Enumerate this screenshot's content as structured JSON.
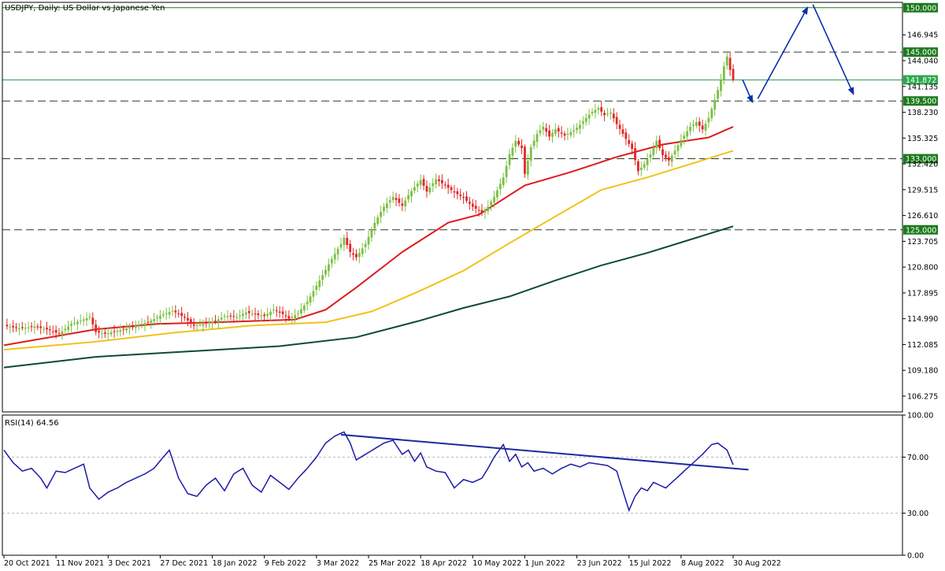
{
  "chart_data": [
    {
      "type": "candlestick",
      "title": "USDJPY, Daily:  US Dollar vs Japanese Yen",
      "ylim": [
        104.5,
        150.6
      ],
      "y_ticks": [
        "146.945",
        "144.040",
        "141.135",
        "138.230",
        "135.325",
        "132.420",
        "129.515",
        "126.610",
        "123.705",
        "120.800",
        "117.895",
        "114.990",
        "112.085",
        "109.180",
        "106.275"
      ],
      "x_ticks": [
        "20 Oct 2021",
        "11 Nov 2021",
        "3 Dec 2021",
        "27 Dec 2021",
        "18 Jan 2022",
        "9 Feb 2022",
        "3 Mar 2022",
        "25 Mar 2022",
        "18 Apr 2022",
        "10 May 2022",
        "1 Jun 2022",
        "23 Jun 2022",
        "15 Jul 2022",
        "8 Aug 2022",
        "30 Aug 2022"
      ],
      "price_anchors": [
        [
          0,
          114.2
        ],
        [
          5,
          113.9
        ],
        [
          10,
          114.1
        ],
        [
          15,
          113.7
        ],
        [
          18,
          113.3
        ],
        [
          22,
          114.4
        ],
        [
          26,
          114.9
        ],
        [
          28,
          115.2
        ],
        [
          30,
          113.5
        ],
        [
          33,
          113.3
        ],
        [
          37,
          113.6
        ],
        [
          42,
          114.1
        ],
        [
          47,
          114.6
        ],
        [
          51,
          115.3
        ],
        [
          55,
          115.9
        ],
        [
          59,
          115.1
        ],
        [
          62,
          114.2
        ],
        [
          65,
          114.4
        ],
        [
          69,
          114.7
        ],
        [
          72,
          115.3
        ],
        [
          76,
          115.2
        ],
        [
          79,
          115.7
        ],
        [
          83,
          115.4
        ],
        [
          85,
          115.3
        ],
        [
          88,
          116.0
        ],
        [
          91,
          115.5
        ],
        [
          93,
          115.0
        ],
        [
          96,
          115.6
        ],
        [
          99,
          116.9
        ],
        [
          102,
          118.7
        ],
        [
          106,
          121.1
        ],
        [
          108,
          122.3
        ],
        [
          110,
          123.4
        ],
        [
          111,
          124.1
        ],
        [
          113,
          122.5
        ],
        [
          115,
          121.9
        ],
        [
          118,
          123.4
        ],
        [
          121,
          125.8
        ],
        [
          124,
          127.6
        ],
        [
          127,
          128.7
        ],
        [
          130,
          127.7
        ],
        [
          132,
          128.9
        ],
        [
          134,
          129.8
        ],
        [
          136,
          130.6
        ],
        [
          138,
          129.3
        ],
        [
          141,
          130.7
        ],
        [
          144,
          130.0
        ],
        [
          147,
          129.2
        ],
        [
          150,
          128.6
        ],
        [
          153,
          127.6
        ],
        [
          156,
          126.9
        ],
        [
          158,
          127.6
        ],
        [
          160,
          128.7
        ],
        [
          163,
          130.9
        ],
        [
          165,
          133.5
        ],
        [
          167,
          135.0
        ],
        [
          169,
          134.2
        ],
        [
          170,
          131.3
        ],
        [
          172,
          134.3
        ],
        [
          174,
          135.8
        ],
        [
          176,
          136.6
        ],
        [
          178,
          135.5
        ],
        [
          180,
          136.3
        ],
        [
          183,
          135.6
        ],
        [
          186,
          136.2
        ],
        [
          188,
          136.8
        ],
        [
          190,
          137.6
        ],
        [
          192,
          138.3
        ],
        [
          194,
          138.7
        ],
        [
          196,
          137.9
        ],
        [
          198,
          138.2
        ],
        [
          200,
          136.9
        ],
        [
          202,
          135.8
        ],
        [
          205,
          134.1
        ],
        [
          207,
          131.6
        ],
        [
          209,
          132.4
        ],
        [
          211,
          133.5
        ],
        [
          213,
          135.0
        ],
        [
          215,
          133.4
        ],
        [
          217,
          132.8
        ],
        [
          219,
          133.9
        ],
        [
          221,
          135.1
        ],
        [
          224,
          136.6
        ],
        [
          226,
          137.1
        ],
        [
          228,
          136.3
        ],
        [
          230,
          137.6
        ],
        [
          232,
          139.6
        ],
        [
          234,
          141.9
        ],
        [
          235,
          143.4
        ],
        [
          236,
          144.5
        ],
        [
          237,
          143.0
        ],
        [
          238,
          141.9
        ]
      ],
      "resistance_support_levels": [
        "150.000",
        "145.000",
        "139.500",
        "133.000",
        "125.000"
      ],
      "current_price": "141.872",
      "forecast_path": [
        [
          238,
          141.9
        ],
        [
          245,
          139.4
        ],
        [
          263,
          150.0
        ],
        [
          278,
          140.3
        ]
      ],
      "moving_averages": [
        {
          "color": "#dd1c1c",
          "points": [
            [
              0,
              112.0
            ],
            [
              30,
              113.8
            ],
            [
              50,
              114.4
            ],
            [
              70,
              114.6
            ],
            [
              95,
              114.9
            ],
            [
              105,
              116.0
            ],
            [
              115,
              118.5
            ],
            [
              130,
              122.5
            ],
            [
              145,
              125.8
            ],
            [
              155,
              126.7
            ],
            [
              170,
              130.0
            ],
            [
              185,
              131.5
            ],
            [
              200,
              133.2
            ],
            [
              215,
              134.6
            ],
            [
              230,
              135.4
            ],
            [
              238,
              136.6
            ]
          ]
        },
        {
          "color": "#f1c21b",
          "points": [
            [
              0,
              111.5
            ],
            [
              30,
              112.4
            ],
            [
              55,
              113.4
            ],
            [
              80,
              114.2
            ],
            [
              105,
              114.6
            ],
            [
              120,
              115.8
            ],
            [
              135,
              118.0
            ],
            [
              150,
              120.4
            ],
            [
              165,
              123.5
            ],
            [
              180,
              126.5
            ],
            [
              195,
              129.5
            ],
            [
              210,
              130.9
            ],
            [
              225,
              132.5
            ],
            [
              238,
              133.9
            ]
          ]
        },
        {
          "color": "#0f4a33",
          "points": [
            [
              0,
              109.5
            ],
            [
              30,
              110.7
            ],
            [
              60,
              111.3
            ],
            [
              90,
              111.9
            ],
            [
              115,
              112.9
            ],
            [
              135,
              114.7
            ],
            [
              150,
              116.2
            ],
            [
              165,
              117.5
            ],
            [
              180,
              119.3
            ],
            [
              195,
              121.0
            ],
            [
              210,
              122.4
            ],
            [
              225,
              124.0
            ],
            [
              238,
              125.4
            ]
          ]
        }
      ]
    },
    {
      "type": "line",
      "title": "RSI(14) 64.56",
      "ylim": [
        0,
        100
      ],
      "y_ticks": [
        "100.00",
        "70.00",
        "30.00",
        "0.00"
      ],
      "levels": [
        70,
        30
      ],
      "values_anchors": [
        [
          0,
          75
        ],
        [
          3,
          66
        ],
        [
          6,
          60
        ],
        [
          9,
          62
        ],
        [
          12,
          55
        ],
        [
          14,
          48
        ],
        [
          17,
          60
        ],
        [
          20,
          59
        ],
        [
          23,
          62
        ],
        [
          26,
          65
        ],
        [
          28,
          48
        ],
        [
          31,
          40
        ],
        [
          34,
          45
        ],
        [
          37,
          48
        ],
        [
          40,
          52
        ],
        [
          43,
          55
        ],
        [
          46,
          58
        ],
        [
          49,
          62
        ],
        [
          52,
          70
        ],
        [
          54,
          75
        ],
        [
          57,
          55
        ],
        [
          60,
          44
        ],
        [
          63,
          42
        ],
        [
          66,
          50
        ],
        [
          69,
          55
        ],
        [
          72,
          46
        ],
        [
          75,
          58
        ],
        [
          78,
          62
        ],
        [
          81,
          50
        ],
        [
          84,
          45
        ],
        [
          87,
          57
        ],
        [
          90,
          52
        ],
        [
          93,
          47
        ],
        [
          96,
          55
        ],
        [
          99,
          62
        ],
        [
          102,
          70
        ],
        [
          105,
          80
        ],
        [
          108,
          85
        ],
        [
          111,
          88
        ],
        [
          113,
          80
        ],
        [
          115,
          68
        ],
        [
          118,
          72
        ],
        [
          121,
          76
        ],
        [
          124,
          80
        ],
        [
          127,
          82
        ],
        [
          130,
          72
        ],
        [
          132,
          75
        ],
        [
          134,
          67
        ],
        [
          136,
          73
        ],
        [
          138,
          63
        ],
        [
          141,
          60
        ],
        [
          144,
          59
        ],
        [
          147,
          48
        ],
        [
          150,
          54
        ],
        [
          153,
          52
        ],
        [
          156,
          55
        ],
        [
          158,
          62
        ],
        [
          160,
          70
        ],
        [
          163,
          79
        ],
        [
          165,
          67
        ],
        [
          167,
          72
        ],
        [
          169,
          63
        ],
        [
          171,
          66
        ],
        [
          173,
          60
        ],
        [
          176,
          62
        ],
        [
          179,
          58
        ],
        [
          182,
          62
        ],
        [
          185,
          65
        ],
        [
          188,
          63
        ],
        [
          191,
          66
        ],
        [
          194,
          65
        ],
        [
          197,
          64
        ],
        [
          200,
          60
        ],
        [
          202,
          46
        ],
        [
          204,
          32
        ],
        [
          206,
          42
        ],
        [
          208,
          48
        ],
        [
          210,
          46
        ],
        [
          212,
          52
        ],
        [
          214,
          50
        ],
        [
          216,
          48
        ],
        [
          218,
          52
        ],
        [
          220,
          56
        ],
        [
          222,
          60
        ],
        [
          225,
          66
        ],
        [
          228,
          72
        ],
        [
          231,
          79
        ],
        [
          233,
          80
        ],
        [
          236,
          75
        ],
        [
          238,
          64.56
        ]
      ],
      "trendline": [
        [
          110,
          86
        ],
        [
          243,
          61
        ]
      ]
    }
  ]
}
